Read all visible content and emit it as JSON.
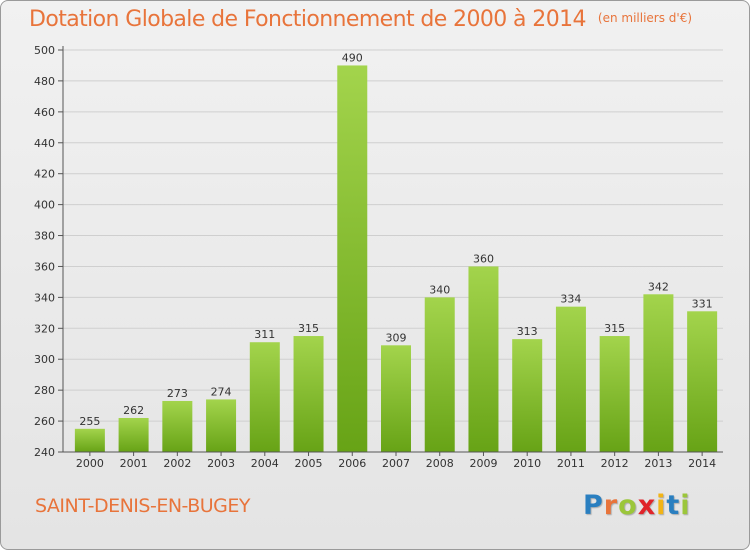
{
  "header": {
    "title": "Dotation Globale de Fonctionnement de 2000 à 2014",
    "unit": "(en milliers d'€)"
  },
  "footer": {
    "commune": "SAINT-DENIS-EN-BUGEY",
    "logo_letters": [
      "P",
      "r",
      "o",
      "x",
      "i",
      "t",
      "i"
    ]
  },
  "colors": {
    "title": "#e8743b",
    "bar_light": "#a3d44c",
    "bar_dark": "#67a316",
    "logo": [
      "#2a7fc0",
      "#e8743b",
      "#9bc63a",
      "#e0242a",
      "#f2b416",
      "#2a7fc0",
      "#9bc63a"
    ]
  },
  "chart_data": {
    "type": "bar",
    "title": "Dotation Globale de Fonctionnement de 2000 à 2014",
    "xlabel": "",
    "ylabel": "",
    "categories": [
      "2000",
      "2001",
      "2002",
      "2003",
      "2004",
      "2005",
      "2006",
      "2007",
      "2008",
      "2009",
      "2010",
      "2011",
      "2012",
      "2013",
      "2014"
    ],
    "values": [
      255,
      262,
      273,
      274,
      311,
      315,
      490,
      309,
      340,
      360,
      313,
      334,
      315,
      342,
      331
    ],
    "ylim": [
      240,
      500
    ],
    "yticks": [
      240,
      260,
      280,
      300,
      320,
      340,
      360,
      380,
      400,
      420,
      440,
      460,
      480,
      500
    ],
    "grid": true,
    "data_labels": true
  }
}
